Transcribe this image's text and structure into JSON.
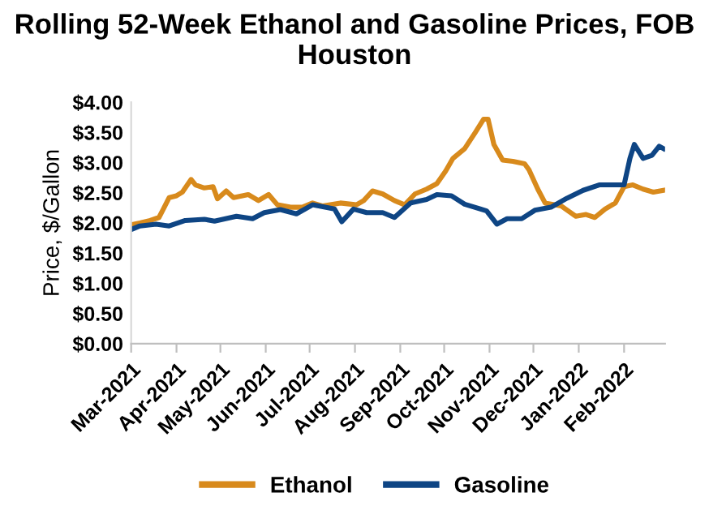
{
  "chart_data": {
    "type": "line",
    "title": "Rolling 52-Week Ethanol and Gasoline Prices, FOB Houston",
    "ylabel": "Price, $/Gallon",
    "xlim": [
      "2021-03-01",
      "2022-03-01"
    ],
    "xticks": [
      {
        "value": "2021-03-01",
        "label": "Mar-2021"
      },
      {
        "value": "2021-04-01",
        "label": "Apr-2021"
      },
      {
        "value": "2021-05-01",
        "label": "May-2021"
      },
      {
        "value": "2021-06-01",
        "label": "Jun-2021"
      },
      {
        "value": "2021-07-01",
        "label": "Jul-2021"
      },
      {
        "value": "2021-08-01",
        "label": "Aug-2021"
      },
      {
        "value": "2021-09-01",
        "label": "Sep-2021"
      },
      {
        "value": "2021-10-01",
        "label": "Oct-2021"
      },
      {
        "value": "2021-11-01",
        "label": "Nov-2021"
      },
      {
        "value": "2021-12-01",
        "label": "Dec-2021"
      },
      {
        "value": "2022-01-01",
        "label": "Jan-2022"
      },
      {
        "value": "2022-02-01",
        "label": "Feb-2022"
      }
    ],
    "ylim": [
      0,
      4
    ],
    "yticks": [
      {
        "value": 0,
        "label": "$0.00"
      },
      {
        "value": 0.5,
        "label": "$0.50"
      },
      {
        "value": 1,
        "label": "$1.00"
      },
      {
        "value": 1.5,
        "label": "$1.50"
      },
      {
        "value": 2,
        "label": "$2.00"
      },
      {
        "value": 2.5,
        "label": "$2.50"
      },
      {
        "value": 3,
        "label": "$3.00"
      },
      {
        "value": 3.5,
        "label": "$3.50"
      },
      {
        "value": 4,
        "label": "$4.00"
      }
    ],
    "grid": false,
    "legend": "bottom",
    "marker": "none",
    "line_style": "solid",
    "series": [
      {
        "name": "Ethanol",
        "color": "#d88a1c",
        "x": [
          "2021-03-01",
          "2021-03-07",
          "2021-03-14",
          "2021-03-20",
          "2021-03-23",
          "2021-03-27",
          "2021-04-01",
          "2021-04-05",
          "2021-04-11",
          "2021-04-14",
          "2021-04-20",
          "2021-04-26",
          "2021-04-29",
          "2021-05-05",
          "2021-05-10",
          "2021-05-20",
          "2021-05-27",
          "2021-06-03",
          "2021-06-09",
          "2021-06-18",
          "2021-06-26",
          "2021-07-03",
          "2021-07-10",
          "2021-07-22",
          "2021-08-02",
          "2021-08-07",
          "2021-08-13",
          "2021-08-20",
          "2021-08-28",
          "2021-09-04",
          "2021-09-11",
          "2021-09-19",
          "2021-09-26",
          "2021-10-02",
          "2021-10-07",
          "2021-10-15",
          "2021-10-22",
          "2021-10-28",
          "2021-10-31",
          "2021-11-04",
          "2021-11-10",
          "2021-11-17",
          "2021-11-25",
          "2021-11-28",
          "2021-12-04",
          "2021-12-09",
          "2021-12-20",
          "2021-12-30",
          "2022-01-06",
          "2022-01-12",
          "2022-01-19",
          "2022-01-26",
          "2022-02-01",
          "2022-02-07",
          "2022-02-14",
          "2022-02-21",
          "2022-02-28"
        ],
        "values": [
          1.97,
          2.0,
          2.04,
          2.09,
          2.23,
          2.42,
          2.45,
          2.51,
          2.72,
          2.63,
          2.58,
          2.6,
          2.4,
          2.53,
          2.42,
          2.47,
          2.37,
          2.47,
          2.3,
          2.26,
          2.26,
          2.33,
          2.28,
          2.33,
          2.3,
          2.37,
          2.53,
          2.48,
          2.37,
          2.3,
          2.48,
          2.56,
          2.65,
          2.86,
          3.07,
          3.23,
          3.49,
          3.72,
          3.72,
          3.3,
          3.04,
          3.02,
          2.98,
          2.88,
          2.56,
          2.33,
          2.28,
          2.11,
          2.14,
          2.09,
          2.23,
          2.33,
          2.6,
          2.63,
          2.56,
          2.51,
          2.54
        ]
      },
      {
        "name": "Gasoline",
        "color": "#0e4584",
        "x": [
          "2021-03-01",
          "2021-03-07",
          "2021-03-18",
          "2021-03-27",
          "2021-04-07",
          "2021-04-20",
          "2021-04-27",
          "2021-05-12",
          "2021-05-23",
          "2021-05-31",
          "2021-06-11",
          "2021-06-22",
          "2021-07-03",
          "2021-07-18",
          "2021-07-23",
          "2021-07-31",
          "2021-08-09",
          "2021-08-20",
          "2021-08-28",
          "2021-09-08",
          "2021-09-19",
          "2021-09-26",
          "2021-10-06",
          "2021-10-15",
          "2021-10-30",
          "2021-11-06",
          "2021-11-13",
          "2021-11-23",
          "2021-12-02",
          "2021-12-13",
          "2021-12-24",
          "2022-01-04",
          "2022-01-15",
          "2022-01-26",
          "2022-02-01",
          "2022-02-05",
          "2022-02-08",
          "2022-02-14",
          "2022-02-20",
          "2022-02-25",
          "2022-02-28"
        ],
        "values": [
          1.89,
          1.95,
          1.98,
          1.95,
          2.04,
          2.06,
          2.03,
          2.11,
          2.07,
          2.17,
          2.22,
          2.15,
          2.3,
          2.23,
          2.02,
          2.23,
          2.17,
          2.17,
          2.09,
          2.33,
          2.39,
          2.47,
          2.45,
          2.31,
          2.2,
          1.98,
          2.07,
          2.07,
          2.21,
          2.26,
          2.41,
          2.54,
          2.63,
          2.63,
          2.63,
          3.07,
          3.3,
          3.07,
          3.12,
          3.27,
          3.23
        ]
      }
    ]
  }
}
